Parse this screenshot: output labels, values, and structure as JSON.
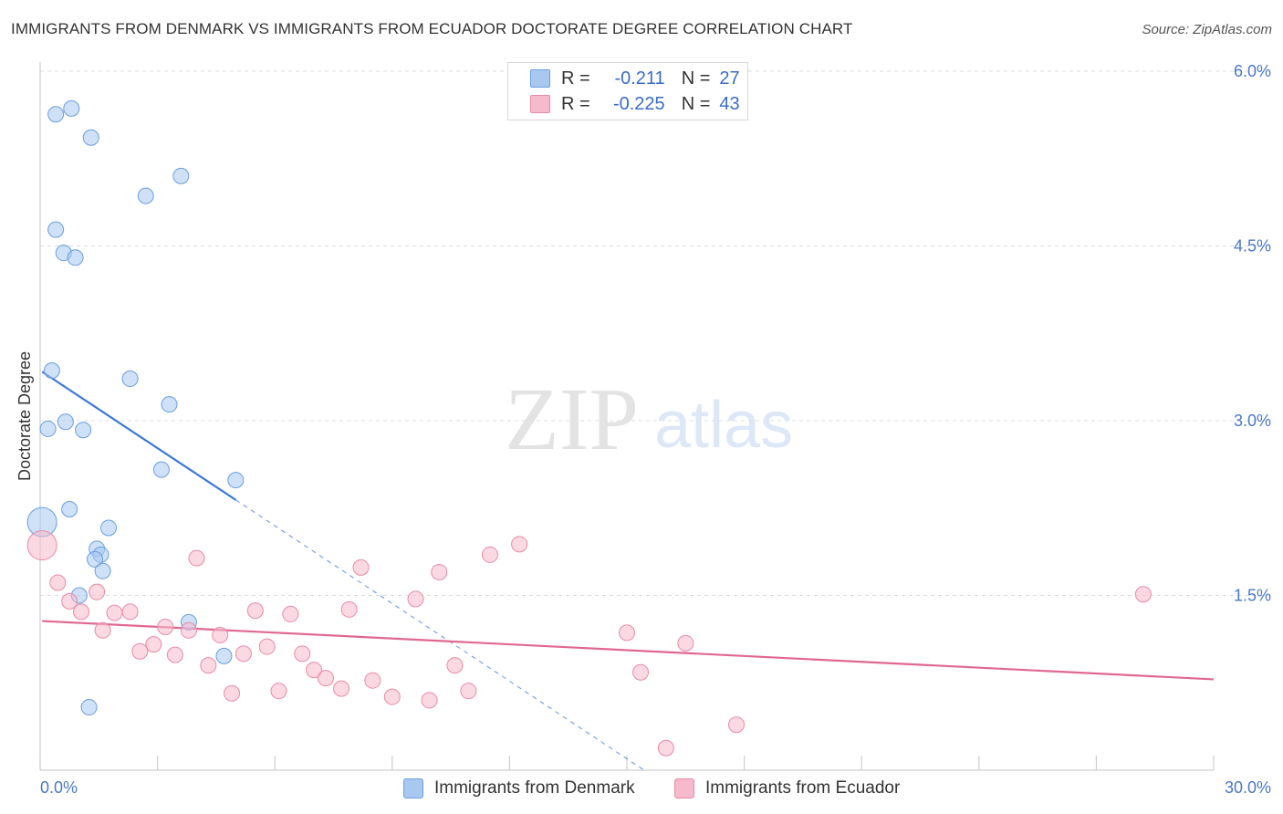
{
  "title": "IMMIGRANTS FROM DENMARK VS IMMIGRANTS FROM ECUADOR DOCTORATE DEGREE CORRELATION CHART",
  "source": "Source: ZipAtlas.com",
  "watermark": {
    "zip": "ZIP",
    "atlas": "atlas"
  },
  "legend": {
    "r_label": "R =",
    "n_label": "N =",
    "rows": [
      {
        "r": "-0.211",
        "n": "27",
        "color": "#a8c8f0"
      },
      {
        "r": "-0.225",
        "n": "43",
        "color": "#f7b9cc"
      }
    ]
  },
  "chart_data": {
    "type": "scatter",
    "title": "IMMIGRANTS FROM DENMARK VS IMMIGRANTS FROM ECUADOR DOCTORATE DEGREE CORRELATION CHART",
    "xlabel": "",
    "ylabel": "Doctorate Degree",
    "xlim": [
      0,
      30
    ],
    "ylim": [
      0,
      6.3
    ],
    "x_tick_labels": [
      "0.0%",
      "30.0%"
    ],
    "y_ticks": [
      1.5,
      3.0,
      4.5,
      6.0
    ],
    "y_tick_labels": [
      "1.5%",
      "3.0%",
      "4.5%",
      "6.0%"
    ],
    "series": [
      {
        "name": "Immigrants from Denmark",
        "color": "#a8c8f0",
        "stroke": "#6a9ee0",
        "trend": {
          "x0": 0.05,
          "y0": 3.42,
          "x1": 5.0,
          "y1": 2.32,
          "dash_to_x": 15.5,
          "color": "#3a78d8"
        },
        "points": [
          {
            "x": 0.4,
            "y": 5.63
          },
          {
            "x": 0.8,
            "y": 5.68
          },
          {
            "x": 1.3,
            "y": 5.43
          },
          {
            "x": 3.6,
            "y": 5.1
          },
          {
            "x": 2.7,
            "y": 4.93
          },
          {
            "x": 0.4,
            "y": 4.64
          },
          {
            "x": 0.6,
            "y": 4.44
          },
          {
            "x": 0.9,
            "y": 4.4
          },
          {
            "x": 0.3,
            "y": 3.43
          },
          {
            "x": 2.3,
            "y": 3.36
          },
          {
            "x": 3.3,
            "y": 3.14
          },
          {
            "x": 0.2,
            "y": 2.93
          },
          {
            "x": 0.65,
            "y": 2.99
          },
          {
            "x": 1.1,
            "y": 2.92
          },
          {
            "x": 3.1,
            "y": 2.58
          },
          {
            "x": 5.0,
            "y": 2.49
          },
          {
            "x": 0.75,
            "y": 2.24
          },
          {
            "x": 0.05,
            "y": 2.13
          },
          {
            "x": 1.75,
            "y": 2.08
          },
          {
            "x": 1.45,
            "y": 1.9
          },
          {
            "x": 1.55,
            "y": 1.85
          },
          {
            "x": 1.4,
            "y": 1.81
          },
          {
            "x": 1.6,
            "y": 1.71
          },
          {
            "x": 1.0,
            "y": 1.5
          },
          {
            "x": 3.8,
            "y": 1.27
          },
          {
            "x": 4.7,
            "y": 0.98
          },
          {
            "x": 1.25,
            "y": 0.54
          }
        ]
      },
      {
        "name": "Immigrants from Ecuador",
        "color": "#f7b9cc",
        "stroke": "#e88aa8",
        "trend": {
          "x0": 0.05,
          "y0": 1.28,
          "x1": 30.0,
          "y1": 0.78,
          "color": "#e06890"
        },
        "points": [
          {
            "x": 0.05,
            "y": 1.93
          },
          {
            "x": 0.45,
            "y": 1.61
          },
          {
            "x": 0.75,
            "y": 1.45
          },
          {
            "x": 1.05,
            "y": 1.36
          },
          {
            "x": 1.45,
            "y": 1.53
          },
          {
            "x": 1.6,
            "y": 1.2
          },
          {
            "x": 1.9,
            "y": 1.35
          },
          {
            "x": 2.3,
            "y": 1.36
          },
          {
            "x": 2.55,
            "y": 1.02
          },
          {
            "x": 2.9,
            "y": 1.08
          },
          {
            "x": 3.2,
            "y": 1.23
          },
          {
            "x": 3.45,
            "y": 0.99
          },
          {
            "x": 3.8,
            "y": 1.2
          },
          {
            "x": 4.0,
            "y": 1.82
          },
          {
            "x": 4.3,
            "y": 0.9
          },
          {
            "x": 4.6,
            "y": 1.16
          },
          {
            "x": 4.9,
            "y": 0.66
          },
          {
            "x": 5.2,
            "y": 1.0
          },
          {
            "x": 5.5,
            "y": 1.37
          },
          {
            "x": 5.8,
            "y": 1.06
          },
          {
            "x": 6.1,
            "y": 0.68
          },
          {
            "x": 6.4,
            "y": 1.34
          },
          {
            "x": 6.7,
            "y": 1.0
          },
          {
            "x": 7.0,
            "y": 0.86
          },
          {
            "x": 7.3,
            "y": 0.79
          },
          {
            "x": 7.7,
            "y": 0.7
          },
          {
            "x": 7.9,
            "y": 1.38
          },
          {
            "x": 8.2,
            "y": 1.74
          },
          {
            "x": 8.5,
            "y": 0.77
          },
          {
            "x": 9.0,
            "y": 0.63
          },
          {
            "x": 9.6,
            "y": 1.47
          },
          {
            "x": 9.95,
            "y": 0.6
          },
          {
            "x": 10.2,
            "y": 1.7
          },
          {
            "x": 10.6,
            "y": 0.9
          },
          {
            "x": 10.95,
            "y": 0.68
          },
          {
            "x": 11.5,
            "y": 1.85
          },
          {
            "x": 12.25,
            "y": 1.94
          },
          {
            "x": 15.0,
            "y": 1.18
          },
          {
            "x": 15.35,
            "y": 0.84
          },
          {
            "x": 16.5,
            "y": 1.09
          },
          {
            "x": 16.0,
            "y": 0.19
          },
          {
            "x": 17.8,
            "y": 0.39
          },
          {
            "x": 28.2,
            "y": 1.51
          }
        ]
      }
    ]
  }
}
